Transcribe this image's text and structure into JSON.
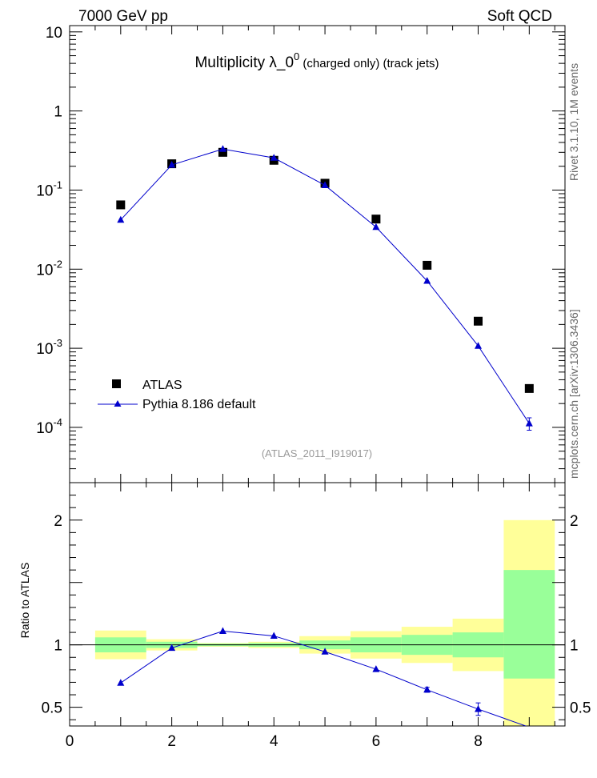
{
  "header": {
    "left": "7000 GeV pp",
    "right": "Soft QCD"
  },
  "title": {
    "main": "Multiplicity  λ_0",
    "sup": "0",
    "suffix": " (charged only) (track jets)"
  },
  "side_labels": {
    "rivet": "Rivet 3.1.10,  1M events",
    "mcplots": "mcplots.cern.ch [arXiv:1306.3436]"
  },
  "watermark": "(ATLAS_2011_I919017)",
  "legend": {
    "data_label": "ATLAS",
    "mc_label": "Pythia 8.186 default"
  },
  "colors": {
    "data": "#000000",
    "mc": "#0000cc",
    "band_inner": "#99ff99",
    "band_outer": "#ffff99"
  },
  "chart_data": [
    {
      "type": "scatter",
      "panel": "main",
      "yscale": "log",
      "xlim": [
        0,
        9.7
      ],
      "ylim": [
        2e-05,
        12
      ],
      "ytick_labels": [
        "10",
        "1",
        "10^-1",
        "10^-2",
        "10^-3",
        "10^-4"
      ],
      "series": [
        {
          "name": "ATLAS",
          "marker": "square",
          "x": [
            1,
            2,
            3,
            4,
            5,
            6,
            7,
            8,
            9
          ],
          "y": [
            0.065,
            0.215,
            0.3,
            0.238,
            0.122,
            0.043,
            0.0112,
            0.0022,
            0.00031
          ]
        },
        {
          "name": "Pythia 8.186 default",
          "marker": "triangle",
          "x": [
            1,
            2,
            3,
            4,
            5,
            6,
            7,
            8,
            9
          ],
          "y": [
            0.042,
            0.208,
            0.33,
            0.255,
            0.115,
            0.034,
            0.0071,
            0.00107,
            0.000112
          ],
          "yerr": [
            0,
            0,
            0,
            0,
            0,
            0,
            0,
            0,
            2e-05
          ]
        }
      ]
    },
    {
      "type": "line",
      "panel": "ratio",
      "ylabel": "Ratio to ATLAS",
      "xlim": [
        0,
        9.7
      ],
      "ylim": [
        0.35,
        2.3
      ],
      "xtick_labels": [
        "0",
        "2",
        "4",
        "6",
        "8"
      ],
      "ytick_labels": [
        "0.5",
        "1",
        "2"
      ],
      "bands": {
        "x_edges": [
          0.5,
          1.5,
          2.5,
          3.5,
          4.5,
          5.5,
          6.5,
          7.5,
          8.5,
          9.5
        ],
        "inner_lo": [
          0.94,
          0.975,
          0.99,
          0.985,
          0.965,
          0.94,
          0.92,
          0.9,
          0.73
        ],
        "inner_hi": [
          1.06,
          1.025,
          1.01,
          1.015,
          1.035,
          1.06,
          1.08,
          1.1,
          1.6
        ],
        "outer_lo": [
          0.885,
          0.955,
          0.985,
          0.975,
          0.93,
          0.89,
          0.855,
          0.79,
          0.2
        ],
        "outer_hi": [
          1.115,
          1.045,
          1.015,
          1.025,
          1.07,
          1.11,
          1.145,
          1.21,
          2.0
        ]
      },
      "series": [
        {
          "name": "Pythia 8.186 default",
          "x": [
            1,
            2,
            3,
            4,
            5,
            6,
            7,
            8,
            9
          ],
          "y": [
            0.695,
            0.975,
            1.11,
            1.072,
            0.945,
            0.805,
            0.64,
            0.485,
            0.34
          ],
          "yerr": [
            0,
            0,
            0,
            0,
            0,
            0,
            0.02,
            0.05,
            0
          ]
        }
      ],
      "reference_line": 1
    }
  ]
}
